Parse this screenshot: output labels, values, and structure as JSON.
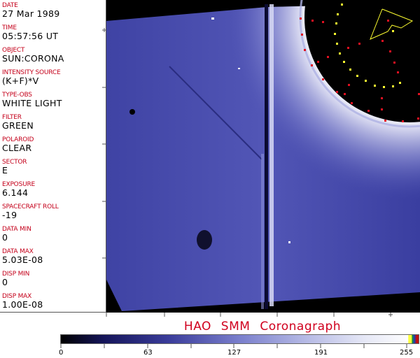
{
  "header_fields": [
    {
      "label": "DATE",
      "value": "27 Mar 1989"
    },
    {
      "label": "TIME",
      "value": "05:57:56 UT"
    },
    {
      "label": "OBJECT",
      "value": "SUN:CORONA"
    },
    {
      "label": "INTENSITY SOURCE",
      "value": "(K+F)*V"
    },
    {
      "label": "TYPE-OBS",
      "value": "WHITE LIGHT"
    },
    {
      "label": "FILTER",
      "value": "GREEN"
    },
    {
      "label": "POLAROID",
      "value": "CLEAR"
    },
    {
      "label": "SECTOR",
      "value": "E"
    },
    {
      "label": "EXPOSURE",
      "value": "6.144"
    },
    {
      "label": "SPACECRAFT ROLL",
      "value": "-19"
    },
    {
      "label": "DATA MIN",
      "value": "0"
    },
    {
      "label": "DATA MAX",
      "value": "5.03E-08"
    },
    {
      "label": "DISP MIN",
      "value": "0"
    },
    {
      "label": "DISP MAX",
      "value": "1.00E-08"
    }
  ],
  "title": "HAO  SMM Coronagraph",
  "colorbar": {
    "ticks": [
      "0",
      "63",
      "127",
      "191",
      "255"
    ],
    "colormap": "black-blue-white",
    "colors": {
      "low": "#000000",
      "mid": "#7a7fcc",
      "high": "#fdfdfe"
    }
  },
  "colors": {
    "label": "#c4001a",
    "image_blue": "#4d50b0",
    "marker_red": "#e01020",
    "marker_yellow": "#ffff30"
  }
}
